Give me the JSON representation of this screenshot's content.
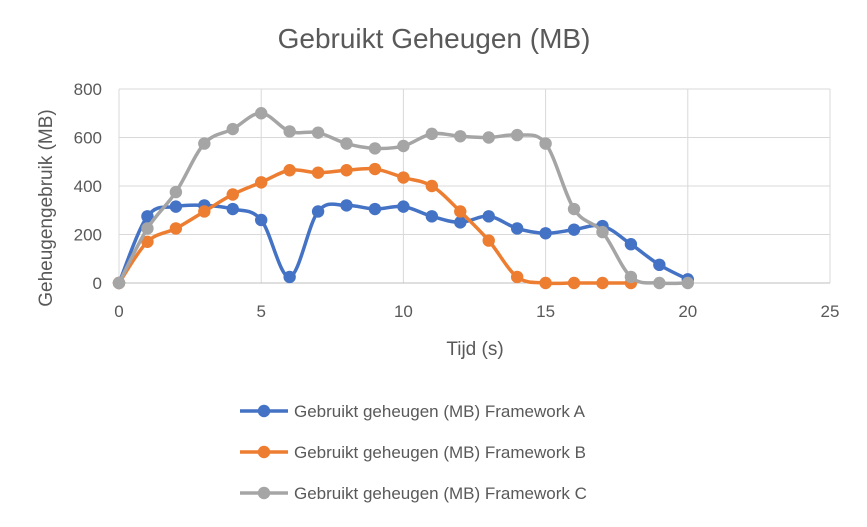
{
  "chart_data": {
    "type": "line",
    "title": "Gebruikt Geheugen (MB)",
    "xlabel": "Tijd (s)",
    "ylabel": "Geheugengebruik (MB)",
    "xlim": [
      0,
      25
    ],
    "ylim": [
      0,
      800
    ],
    "x_ticks": [
      0,
      5,
      10,
      15,
      20,
      25
    ],
    "y_ticks": [
      0,
      200,
      400,
      600,
      800
    ],
    "x_tick_labels": [
      "0",
      "5",
      "10",
      "15",
      "20",
      "25"
    ],
    "y_tick_labels": [
      "0",
      "200",
      "400",
      "600",
      "800"
    ],
    "grid": true,
    "legend_position": "bottom",
    "smooth": true,
    "series": [
      {
        "name": "Gebruikt geheugen (MB) Framework A",
        "color": "#4472C4",
        "x": [
          0,
          1,
          2,
          3,
          4,
          5,
          6,
          7,
          8,
          9,
          10,
          11,
          12,
          13,
          14,
          15,
          16,
          17,
          18,
          19,
          20
        ],
        "y": [
          0,
          275,
          315,
          320,
          305,
          260,
          25,
          295,
          320,
          305,
          315,
          275,
          250,
          275,
          225,
          205,
          220,
          235,
          160,
          75,
          15
        ]
      },
      {
        "name": "Gebruikt geheugen (MB) Framework B",
        "color": "#ED7D31",
        "x": [
          0,
          1,
          2,
          3,
          4,
          5,
          6,
          7,
          8,
          9,
          10,
          11,
          12,
          13,
          14,
          15,
          16,
          17,
          18
        ],
        "y": [
          0,
          170,
          225,
          295,
          365,
          415,
          465,
          455,
          465,
          470,
          435,
          400,
          295,
          175,
          25,
          0,
          0,
          0,
          0
        ]
      },
      {
        "name": "Gebruikt geheugen (MB) Framework C",
        "color": "#A5A5A5",
        "x": [
          0,
          1,
          2,
          3,
          4,
          5,
          6,
          7,
          8,
          9,
          10,
          11,
          12,
          13,
          14,
          15,
          16,
          17,
          18,
          19,
          20
        ],
        "y": [
          0,
          225,
          375,
          575,
          635,
          700,
          625,
          620,
          575,
          555,
          565,
          615,
          605,
          600,
          610,
          575,
          305,
          210,
          25,
          0,
          0
        ]
      }
    ]
  }
}
